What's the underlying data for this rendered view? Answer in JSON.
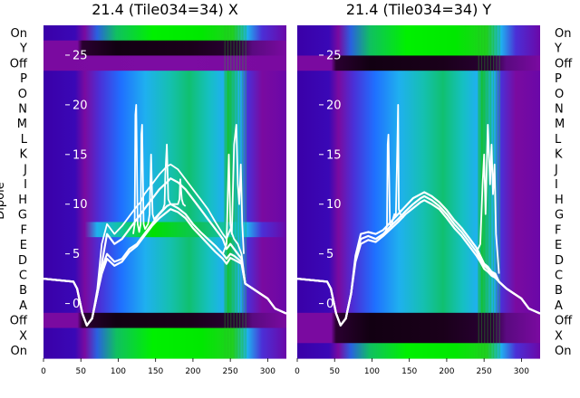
{
  "chart_data": {
    "type": "heatmap",
    "ylabel": "Dipole",
    "dipole_labels": [
      "On",
      "Y",
      "Off",
      "P",
      "O",
      "N",
      "M",
      "L",
      "K",
      "J",
      "I",
      "H",
      "G",
      "F",
      "E",
      "D",
      "C",
      "B",
      "A",
      "Off",
      "X",
      "On"
    ],
    "x_ticks": [
      0,
      50,
      100,
      150,
      200,
      250,
      300
    ],
    "xlim": [
      0,
      325
    ],
    "line_ylim": [
      -5.5,
      28
    ],
    "line_ticks": [
      0,
      5,
      10,
      15,
      20,
      25
    ],
    "colormap": [
      "#3a00a8",
      "#4b2fd6",
      "#1f70ff",
      "#1fb0ef",
      "#15c0c0",
      "#10c060",
      "#00f000",
      "#7a0aa0",
      "#1a001a"
    ],
    "panels": [
      {
        "title": "21.4 (Tile034=34) X",
        "rows": [
          {
            "label": "On",
            "pattern": "green"
          },
          {
            "label": "Y",
            "pattern": "dark"
          },
          {
            "label": "Off",
            "pattern": "purple"
          },
          {
            "label": "P",
            "pattern": "standard"
          },
          {
            "label": "O",
            "pattern": "standard"
          },
          {
            "label": "N",
            "pattern": "standard"
          },
          {
            "label": "M",
            "pattern": "standard"
          },
          {
            "label": "L",
            "pattern": "standard"
          },
          {
            "label": "K",
            "pattern": "standard"
          },
          {
            "label": "J",
            "pattern": "standard"
          },
          {
            "label": "I",
            "pattern": "standard"
          },
          {
            "label": "H",
            "pattern": "standard"
          },
          {
            "label": "G",
            "pattern": "standard"
          },
          {
            "label": "F",
            "pattern": "bright"
          },
          {
            "label": "E",
            "pattern": "standard"
          },
          {
            "label": "D",
            "pattern": "standard"
          },
          {
            "label": "C",
            "pattern": "standard"
          },
          {
            "label": "B",
            "pattern": "standard"
          },
          {
            "label": "A",
            "pattern": "standard"
          },
          {
            "label": "Off",
            "pattern": "dark"
          },
          {
            "label": "X",
            "pattern": "green"
          },
          {
            "label": "On",
            "pattern": "green"
          }
        ],
        "series": [
          {
            "x": [
              0,
              40,
              45,
              52,
              58,
              65,
              72,
              78,
              85,
              95,
              105,
              115,
              125,
              135,
              145,
              155,
              165,
              170,
              180,
              190,
              200,
              210,
              220,
              230,
              240,
              245,
              250,
              255,
              260,
              265,
              270,
              280,
              290,
              300,
              310,
              325
            ],
            "y": [
              2.5,
              2.2,
              1.5,
              -1,
              -2.2,
              -1.5,
              1,
              3.5,
              5,
              4.2,
              4.5,
              5.5,
              6,
              7,
              8,
              9,
              9.8,
              10,
              9.6,
              9,
              8,
              7.2,
              6.5,
              5.8,
              5,
              4.5,
              5,
              4.8,
              4.5,
              4.2,
              2,
              1.5,
              1,
              0.5,
              -0.5,
              -1
            ]
          },
          {
            "x": [
              0,
              40,
              45,
              52,
              58,
              65,
              72,
              78,
              85,
              95,
              105,
              115,
              125,
              135,
              145,
              155,
              165,
              170,
              180,
              190,
              200,
              210,
              220,
              230,
              240,
              245,
              250,
              255,
              260,
              265,
              270,
              280,
              290,
              300,
              310,
              325
            ],
            "y": [
              2.5,
              2.2,
              1.5,
              -1,
              -2.2,
              -1.5,
              1,
              3,
              4.5,
              3.8,
              4.2,
              5.2,
              5.8,
              6.8,
              7.8,
              8.6,
              9.2,
              9.5,
              9.2,
              8.6,
              7.6,
              6.8,
              6,
              5.2,
              4.5,
              4,
              4.6,
              4.4,
              4.2,
              4,
              2,
              1.5,
              1,
              0.5,
              -0.5,
              -1
            ]
          },
          {
            "x": [
              0,
              40,
              45,
              52,
              58,
              65,
              72,
              78,
              85,
              95,
              105,
              115,
              125,
              135,
              145,
              155,
              165,
              170,
              180,
              190,
              200,
              210,
              220,
              230,
              240,
              245,
              250,
              255,
              260,
              265,
              270,
              280,
              290,
              300,
              310,
              325
            ],
            "y": [
              2.5,
              2.2,
              1.5,
              -1,
              -2.2,
              -1.5,
              1,
              4,
              7,
              6,
              6.5,
              7.5,
              8.5,
              9.5,
              10.5,
              11.5,
              12.2,
              12.6,
              12.2,
              11.5,
              10.5,
              9.5,
              8.5,
              7.5,
              6.5,
              5.5,
              6,
              5.5,
              5,
              4.5,
              2,
              1.5,
              1,
              0.5,
              -0.5,
              -1
            ]
          },
          {
            "x": [
              0,
              40,
              45,
              52,
              58,
              65,
              72,
              78,
              85,
              95,
              105,
              115,
              125,
              130,
              135,
              145,
              155,
              165,
              170,
              180,
              190,
              200,
              210,
              220,
              230,
              240,
              245,
              250,
              255,
              260,
              265,
              270,
              280,
              290,
              300,
              310,
              325
            ],
            "y": [
              2.5,
              2.2,
              1.5,
              -1,
              -2.2,
              -1.5,
              1.5,
              6,
              8,
              7,
              7.8,
              8.8,
              9.8,
              10.2,
              11,
              12,
              13,
              13.8,
              14,
              13.5,
              12.5,
              11.5,
              10.5,
              9.5,
              8.2,
              7,
              6.5,
              7.5,
              6.5,
              6,
              5,
              2,
              1.5,
              1,
              0.5,
              -0.5,
              -1
            ]
          },
          {
            "x": [
              120,
              122,
              123,
              124,
              126,
              128,
              130,
              131,
              132,
              134,
              136,
              140,
              142,
              143,
              144,
              146,
              148,
              160,
              162,
              163,
              165,
              167,
              170,
              180,
              182,
              183,
              185,
              187,
              190
            ],
            "y": [
              7,
              8,
              19,
              20,
              8,
              7.2,
              8,
              17,
              18,
              8,
              7.5,
              8,
              9,
              12,
              15,
              9,
              8.5,
              9.5,
              10,
              13,
              16,
              10.5,
              10,
              10,
              10.5,
              12.5,
              10.5,
              10,
              9.8
            ]
          },
          {
            "x": [
              240,
              245,
              248,
              250,
              252,
              255,
              258,
              260,
              262,
              264,
              266,
              268
            ],
            "y": [
              5,
              6,
              15,
              8,
              7,
              16,
              18,
              12,
              10,
              14,
              8,
              5
            ]
          }
        ]
      },
      {
        "title": "21.4 (Tile034=34) Y",
        "rows": [
          {
            "label": "On",
            "pattern": "green"
          },
          {
            "label": "Y",
            "pattern": "green"
          },
          {
            "label": "Off",
            "pattern": "dark"
          },
          {
            "label": "P",
            "pattern": "standard"
          },
          {
            "label": "O",
            "pattern": "standard"
          },
          {
            "label": "N",
            "pattern": "standard"
          },
          {
            "label": "M",
            "pattern": "standard"
          },
          {
            "label": "L",
            "pattern": "standard"
          },
          {
            "label": "K",
            "pattern": "standard"
          },
          {
            "label": "J",
            "pattern": "standard"
          },
          {
            "label": "I",
            "pattern": "standard"
          },
          {
            "label": "H",
            "pattern": "standard"
          },
          {
            "label": "G",
            "pattern": "standard"
          },
          {
            "label": "F",
            "pattern": "standard"
          },
          {
            "label": "E",
            "pattern": "standard"
          },
          {
            "label": "D",
            "pattern": "standard"
          },
          {
            "label": "C",
            "pattern": "standard"
          },
          {
            "label": "B",
            "pattern": "standard"
          },
          {
            "label": "A",
            "pattern": "standard"
          },
          {
            "label": "Off",
            "pattern": "dark"
          },
          {
            "label": "X",
            "pattern": "dark"
          },
          {
            "label": "On",
            "pattern": "green"
          }
        ],
        "series": [
          {
            "x": [
              0,
              40,
              45,
              52,
              58,
              65,
              72,
              78,
              85,
              95,
              105,
              115,
              125,
              135,
              145,
              155,
              165,
              170,
              180,
              190,
              200,
              210,
              220,
              230,
              240,
              245,
              250,
              255,
              260,
              265,
              270,
              280,
              290,
              300,
              310,
              325
            ],
            "y": [
              2.5,
              2.2,
              1.5,
              -1,
              -2.2,
              -1.5,
              1,
              4.5,
              6.5,
              6.8,
              6.5,
              7,
              7.8,
              8.5,
              9.3,
              10,
              10.6,
              10.8,
              10.4,
              9.8,
              9,
              8,
              7.2,
              6.2,
              5.2,
              4.5,
              3.8,
              3.5,
              3,
              2.8,
              2.2,
              1.5,
              1,
              0.5,
              -0.5,
              -1
            ]
          },
          {
            "x": [
              0,
              40,
              45,
              52,
              58,
              65,
              72,
              78,
              85,
              95,
              105,
              115,
              125,
              135,
              145,
              155,
              165,
              170,
              180,
              190,
              200,
              210,
              220,
              230,
              240,
              245,
              250,
              255,
              260,
              265,
              270,
              280,
              290,
              300,
              310,
              325
            ],
            "y": [
              2.5,
              2.2,
              1.5,
              -1,
              -2.2,
              -1.5,
              1,
              4.2,
              6,
              6.4,
              6.2,
              6.8,
              7.5,
              8.2,
              9,
              9.6,
              10.2,
              10.4,
              10,
              9.5,
              8.6,
              7.6,
              6.8,
              5.8,
              4.8,
              4.2,
              3.5,
              3.2,
              2.8,
              2.6,
              2.2,
              1.5,
              1,
              0.5,
              -0.5,
              -1
            ]
          },
          {
            "x": [
              0,
              40,
              45,
              52,
              58,
              65,
              72,
              78,
              85,
              95,
              105,
              115,
              125,
              135,
              145,
              155,
              165,
              170,
              180,
              190,
              200,
              210,
              220,
              230,
              240,
              245,
              250,
              255,
              260,
              265,
              270,
              280,
              290,
              300,
              310,
              325
            ],
            "y": [
              2.5,
              2.2,
              1.5,
              -1,
              -2.2,
              -1.5,
              1,
              4.8,
              7,
              7.2,
              7,
              7.4,
              8.2,
              9,
              9.8,
              10.6,
              11,
              11.2,
              10.8,
              10.2,
              9.4,
              8.4,
              7.6,
              6.6,
              5.6,
              4.8,
              4,
              3.7,
              3.2,
              3,
              2.2,
              1.5,
              1,
              0.5,
              -0.5,
              -1
            ]
          },
          {
            "x": [
              118,
              120,
              121,
              122,
              124,
              126,
              128,
              130,
              132,
              134,
              135,
              136,
              138,
              140,
              142
            ],
            "y": [
              7.2,
              7.8,
              16,
              17,
              8,
              7.8,
              8.5,
              9,
              8.8,
              16,
              20,
              9.5,
              9,
              8.8,
              8.6
            ]
          },
          {
            "x": [
              240,
              245,
              248,
              250,
              252,
              255,
              258,
              260,
              262,
              264,
              266,
              268,
              270
            ],
            "y": [
              5.2,
              6,
              12,
              15,
              9,
              18,
              12,
              16,
              11,
              14,
              7,
              5,
              3
            ]
          }
        ]
      }
    ]
  }
}
